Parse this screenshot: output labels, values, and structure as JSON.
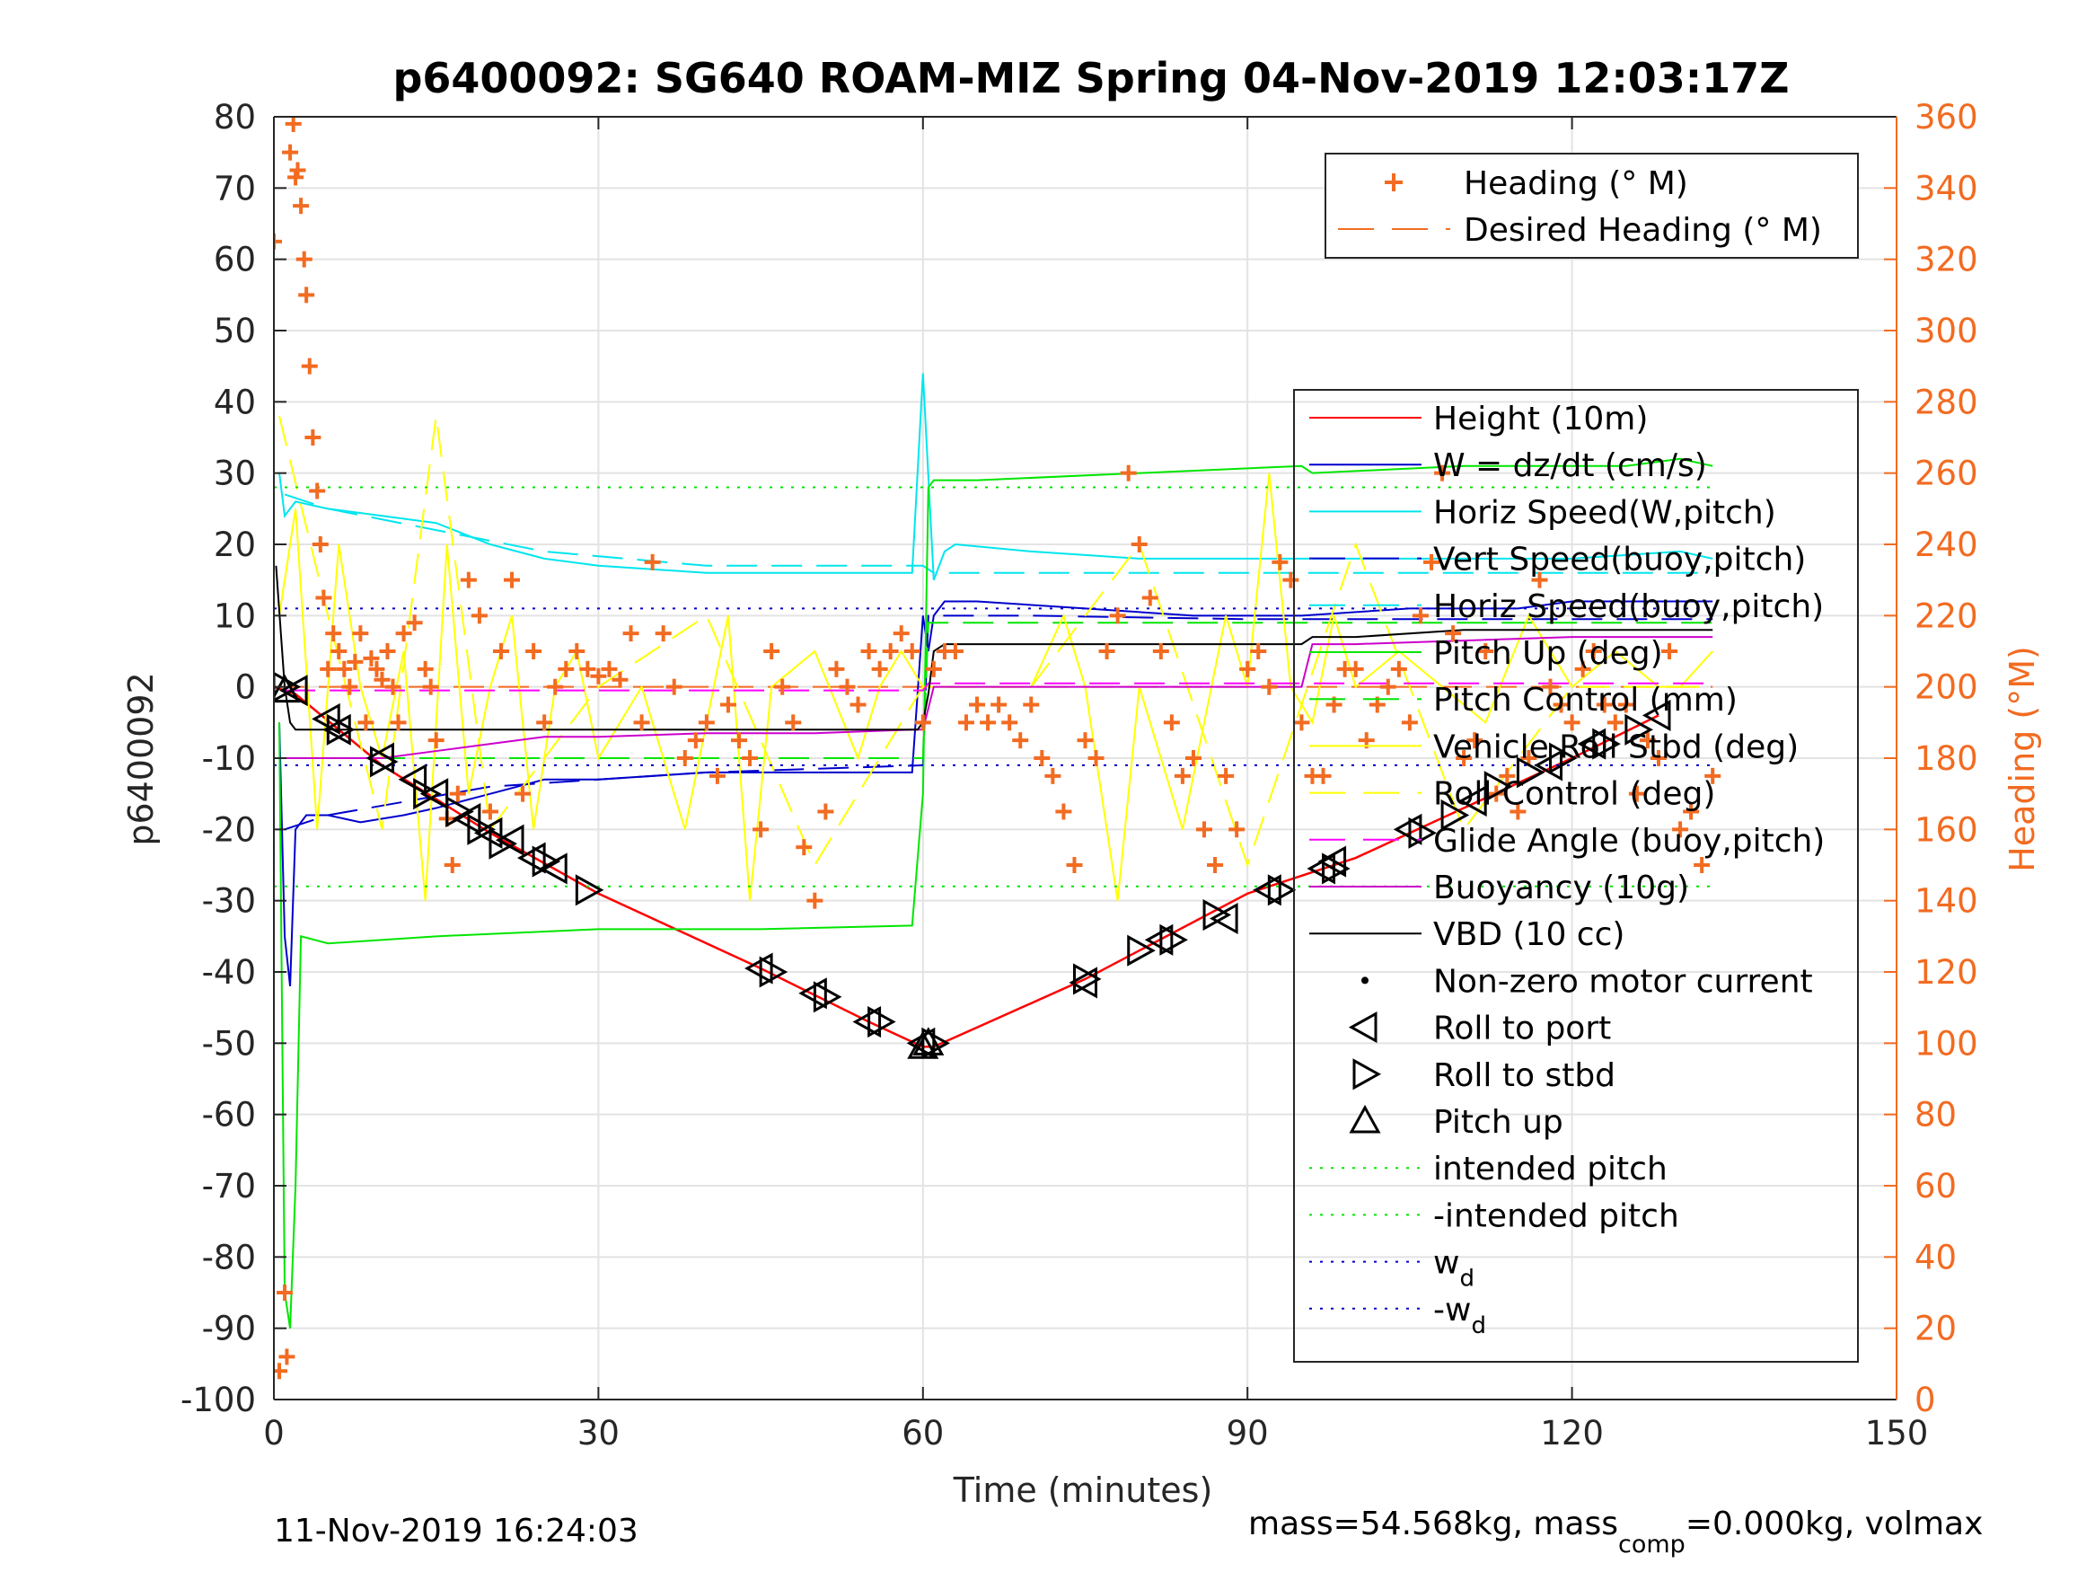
{
  "chart_data": {
    "type": "line",
    "title": "p6400092: SG640 ROAM-MIZ Spring 04-Nov-2019 12:03:17Z",
    "xlabel": "Time (minutes)",
    "ylabel": "p6400092",
    "ylabel_right": "Heading (°M)",
    "xlim": [
      0,
      150
    ],
    "ylim": [
      -100,
      80
    ],
    "ylim_right": [
      0,
      360
    ],
    "x_ticks": [
      "0",
      "30",
      "60",
      "90",
      "120",
      "150"
    ],
    "y_ticks": [
      "-100",
      "-90",
      "-80",
      "-70",
      "-60",
      "-50",
      "-40",
      "-30",
      "-20",
      "-10",
      "0",
      "10",
      "20",
      "30",
      "40",
      "50",
      "60",
      "70",
      "80"
    ],
    "y_ticks_right": [
      "0",
      "20",
      "40",
      "60",
      "80",
      "100",
      "120",
      "140",
      "160",
      "180",
      "200",
      "220",
      "240",
      "260",
      "280",
      "300",
      "320",
      "340",
      "360"
    ],
    "grid": true,
    "footer_left": "11-Nov-2019 16:24:03",
    "footer_right": {
      "part1": "mass=54.568kg, mass",
      "sub": "comp",
      "part2": "=0.000kg, volmax"
    },
    "legend_heading": {
      "placement": "top-right",
      "entries": [
        {
          "label": "Heading (° M)",
          "color": "#f26b21",
          "style": "plus"
        },
        {
          "label": "Desired Heading (° M)",
          "color": "#f26b21",
          "style": "dashed"
        }
      ]
    },
    "legend_main": {
      "placement": "right",
      "entries": [
        {
          "label": "Height (10m)",
          "color": "#ff0000",
          "style": "solid"
        },
        {
          "label": "W = dz/dt (cm/s)",
          "color": "#0000cc",
          "style": "solid"
        },
        {
          "label": "Horiz Speed(W,pitch)",
          "color": "#00e5ee",
          "style": "solid"
        },
        {
          "label": "Vert Speed(buoy,pitch)",
          "color": "#0000cc",
          "style": "dashed"
        },
        {
          "label": "Horiz Speed(buoy,pitch)",
          "color": "#00e5ee",
          "style": "dashed"
        },
        {
          "label": "Pitch Up (deg)",
          "color": "#00e600",
          "style": "solid"
        },
        {
          "label": "Pitch Control (mm)",
          "color": "#00e600",
          "style": "dashed"
        },
        {
          "label": "Vehicle Roll Stbd (deg)",
          "color": "#ffff00",
          "style": "solid"
        },
        {
          "label": "Roll Control (deg)",
          "color": "#ffff00",
          "style": "dashed"
        },
        {
          "label": "Glide Angle (buoy,pitch)",
          "color": "#ff00ff",
          "style": "dashed"
        },
        {
          "label": "Buoyancy (10g)",
          "color": "#cc00cc",
          "style": "solid"
        },
        {
          "label": "VBD (10 cc)",
          "color": "#000000",
          "style": "solid"
        },
        {
          "label": "Non-zero motor current",
          "color": "#000000",
          "style": "dot"
        },
        {
          "label": "Roll to port",
          "color": "#000000",
          "style": "tri-left"
        },
        {
          "label": "Roll to stbd",
          "color": "#000000",
          "style": "tri-right"
        },
        {
          "label": "Pitch up",
          "color": "#000000",
          "style": "tri-up"
        },
        {
          "label": "intended pitch",
          "color": "#00e600",
          "style": "dotted"
        },
        {
          "label": "-intended pitch",
          "color": "#00e600",
          "style": "dotted"
        },
        {
          "label": "w",
          "sub": "d",
          "color": "#0000cc",
          "style": "dotted"
        },
        {
          "label": "-w",
          "sub": "d",
          "color": "#0000cc",
          "style": "dotted"
        }
      ]
    },
    "series": [
      {
        "name": "Height (10m)",
        "color": "#ff0000",
        "style": "solid",
        "x": [
          0,
          2,
          10,
          20,
          30,
          45,
          55,
          60,
          61,
          75,
          90,
          100,
          110,
          120,
          128
        ],
        "y": [
          0,
          -1,
          -11,
          -20.5,
          -29,
          -39.5,
          -47,
          -50.5,
          -50.5,
          -41,
          -29,
          -24,
          -17,
          -10,
          -4
        ]
      },
      {
        "name": "W = dz/dt (cm/s)",
        "color": "#0000cc",
        "style": "solid",
        "x": [
          0.5,
          1,
          1.5,
          2,
          3,
          5,
          8,
          12,
          15,
          20,
          25,
          30,
          40,
          50,
          59,
          60,
          60.5,
          61,
          62,
          65,
          75,
          85,
          95,
          105,
          110,
          115,
          120,
          125,
          130,
          133
        ],
        "y": [
          -5,
          -35,
          -42,
          -20,
          -18,
          -18,
          -19,
          -18,
          -17,
          -15,
          -13,
          -13,
          -12,
          -12,
          -12,
          10,
          5,
          10,
          12,
          12,
          11,
          10,
          10,
          11,
          11,
          11,
          12,
          12,
          12,
          12
        ]
      },
      {
        "name": "Horiz Speed(W,pitch)",
        "color": "#00e5ee",
        "style": "solid",
        "x": [
          0.5,
          1,
          2,
          5,
          10,
          15,
          20,
          25,
          30,
          40,
          50,
          59,
          60,
          61,
          62,
          63,
          70,
          80,
          90,
          100,
          110,
          120,
          130,
          133
        ],
        "y": [
          30,
          24,
          26,
          25,
          24,
          23,
          20,
          18,
          17,
          16,
          16,
          16,
          44,
          15,
          19,
          20,
          19,
          18,
          18,
          18,
          18,
          18,
          19,
          18
        ]
      },
      {
        "name": "Vert Speed(buoy,pitch)",
        "color": "#0000cc",
        "style": "dashed",
        "x": [
          1,
          5,
          20,
          40,
          60,
          60.5,
          70,
          90,
          110,
          133
        ],
        "y": [
          -20,
          -18,
          -14,
          -12,
          -11,
          10,
          10,
          9.5,
          9.5,
          9.5
        ]
      },
      {
        "name": "Horiz Speed(buoy,pitch)",
        "color": "#00e5ee",
        "style": "dashed",
        "x": [
          1,
          5,
          15,
          25,
          40,
          60,
          61,
          70,
          90,
          110,
          133
        ],
        "y": [
          27,
          25,
          22,
          19,
          17,
          17,
          16,
          16,
          16,
          16,
          16
        ]
      },
      {
        "name": "Pitch Up (deg)",
        "color": "#00e600",
        "style": "solid",
        "x": [
          0.5,
          1,
          1.5,
          2,
          2.5,
          5,
          15,
          30,
          45,
          59,
          60,
          60.5,
          61,
          65,
          80,
          95,
          96,
          110,
          125,
          130,
          133
        ],
        "y": [
          -5,
          -85,
          -90,
          -70,
          -35,
          -36,
          -35,
          -34,
          -34,
          -33.5,
          -15,
          28,
          29,
          29,
          30,
          31,
          30,
          31,
          31,
          32,
          31
        ]
      },
      {
        "name": "Pitch Control (mm)",
        "color": "#00e600",
        "style": "dashed",
        "x": [
          1,
          60,
          60.5,
          133
        ],
        "y": [
          -10,
          -10,
          9,
          9
        ]
      },
      {
        "name": "Vehicle Roll Stbd (deg)",
        "color": "#ffff00",
        "style": "solid",
        "x": [
          0.5,
          2,
          4,
          6,
          8,
          10,
          12,
          14,
          16,
          18,
          20,
          22,
          24,
          26,
          28,
          30,
          34,
          38,
          42,
          44,
          46,
          50,
          54,
          56,
          58,
          60,
          61,
          65,
          70,
          73,
          75,
          78,
          80,
          84,
          88,
          90,
          92,
          94,
          96,
          98,
          100,
          104,
          108,
          112,
          116,
          120,
          124,
          128,
          130,
          133
        ],
        "y": [
          10,
          25,
          -20,
          20,
          0,
          -10,
          5,
          -30,
          20,
          -15,
          0,
          10,
          -20,
          0,
          5,
          -10,
          0,
          -20,
          10,
          -30,
          0,
          5,
          -10,
          0,
          5,
          0,
          0,
          0,
          0,
          10,
          0,
          -30,
          0,
          -20,
          10,
          0,
          30,
          0,
          -5,
          10,
          0,
          5,
          0,
          -5,
          10,
          0,
          5,
          0,
          0,
          5
        ]
      },
      {
        "name": "Roll Control (deg)",
        "color": "#ffff00",
        "style": "dashed",
        "x": [
          0.5,
          5,
          10,
          15,
          20,
          30,
          40,
          50,
          60,
          70,
          80,
          90,
          100,
          110,
          120,
          133
        ],
        "y": [
          38,
          10,
          -20,
          38,
          -20,
          0,
          10,
          -25,
          0,
          0,
          20,
          -25,
          20,
          -20,
          0,
          0
        ]
      },
      {
        "name": "Glide Angle (buoy,pitch)",
        "color": "#ff00ff",
        "style": "dashed",
        "x": [
          1,
          60,
          60.5,
          133
        ],
        "y": [
          -0.5,
          -0.5,
          0.5,
          0.5
        ]
      },
      {
        "name": "Buoyancy (10g)",
        "color": "#cc00cc",
        "style": "solid",
        "x": [
          0.5,
          5,
          10,
          15,
          20,
          25,
          30,
          40,
          50,
          59,
          60,
          61,
          70,
          80,
          90,
          95,
          96,
          100,
          110,
          120,
          130,
          133
        ],
        "y": [
          -10,
          -10,
          -10,
          -9,
          -8,
          -7,
          -7,
          -6.5,
          -6.5,
          -6,
          -6,
          0,
          0,
          0,
          0,
          0,
          6,
          6,
          6.5,
          7,
          7,
          7
        ]
      },
      {
        "name": "VBD (10 cc)",
        "color": "#000000",
        "style": "solid",
        "x": [
          0.2,
          1,
          1.5,
          2,
          30,
          59.5,
          60,
          60.5,
          61,
          62,
          95,
          96,
          100,
          110,
          120,
          133
        ],
        "y": [
          17,
          0,
          -5,
          -6,
          -6,
          -6,
          -5,
          -1,
          5,
          6,
          6,
          7,
          7,
          8,
          8,
          8
        ]
      },
      {
        "name": "intended pitch",
        "color": "#00e600",
        "style": "dotted",
        "x": [
          0,
          133
        ],
        "y": [
          28,
          28
        ]
      },
      {
        "name": "-intended pitch",
        "color": "#00e600",
        "style": "dotted",
        "x": [
          0,
          133
        ],
        "y": [
          -28,
          -28
        ]
      },
      {
        "name": "w_d",
        "color": "#0000cc",
        "style": "dotted",
        "x": [
          0,
          133
        ],
        "y": [
          11,
          11
        ]
      },
      {
        "name": "-w_d",
        "color": "#0000cc",
        "style": "dotted",
        "x": [
          0,
          133
        ],
        "y": [
          -11,
          -11
        ]
      }
    ],
    "roll_to_port": {
      "x": [
        2,
        5,
        6,
        10,
        13,
        15,
        18,
        20,
        22,
        24,
        26,
        45,
        50,
        55,
        60,
        75,
        82,
        88,
        92,
        97,
        98,
        105,
        111,
        118,
        122,
        128
      ],
      "y": [
        -0.5,
        -4.5,
        -6,
        -10,
        -13,
        -15,
        -18.5,
        -20.5,
        -21.5,
        -24,
        -25.5,
        -39.5,
        -43,
        -47,
        -50,
        -41.5,
        -35.5,
        -32.5,
        -28.5,
        -25.5,
        -24.5,
        -20,
        -16,
        -11,
        -8,
        -4
      ]
    },
    "roll_to_stbd": {
      "x": [
        1,
        6,
        10,
        14,
        17,
        19,
        21,
        25,
        29,
        46,
        51,
        56,
        61,
        75,
        80,
        83,
        87,
        93,
        98,
        106,
        109,
        113,
        116,
        119,
        123,
        126
      ],
      "y": [
        0,
        -6,
        -10.5,
        -15,
        -17.5,
        -20,
        -22,
        -24.5,
        -28.5,
        -40,
        -43.5,
        -47,
        -50,
        -41,
        -37,
        -35.5,
        -32,
        -28.5,
        -25.5,
        -20.5,
        -18,
        -14,
        -12,
        -10,
        -8,
        -6
      ]
    },
    "pitch_up": {
      "x": [
        1,
        60,
        60.5
      ],
      "y": [
        -0.5,
        -50.5,
        -50
      ]
    },
    "heading_points": {
      "x": [
        0,
        0.5,
        1,
        1.2,
        1.5,
        1.8,
        2,
        2.2,
        2.5,
        2.8,
        3,
        3.3,
        3.6,
        4,
        4.3,
        4.6,
        5,
        5.5,
        6,
        6.5,
        7,
        7.5,
        8,
        8.5,
        9,
        9.5,
        10,
        10.5,
        11,
        11.5,
        12,
        13,
        14,
        14.5,
        15,
        16,
        16.5,
        17,
        18,
        19,
        20,
        21,
        22,
        23,
        24,
        25,
        26,
        27,
        28,
        29,
        30,
        31,
        32,
        33,
        34,
        35,
        36,
        37,
        38,
        39,
        40,
        41,
        42,
        43,
        44,
        45,
        46,
        47,
        48,
        49,
        50,
        51,
        52,
        53,
        54,
        55,
        56,
        57,
        58,
        59,
        60,
        61,
        62,
        63,
        64,
        65,
        66,
        67,
        68,
        69,
        70,
        71,
        72,
        73,
        74,
        75,
        76,
        77,
        78,
        79,
        80,
        81,
        82,
        83,
        84,
        85,
        86,
        87,
        88,
        89,
        90,
        91,
        92,
        93,
        94,
        95,
        96,
        97,
        98,
        99,
        100,
        101,
        102,
        103,
        104,
        105,
        106,
        107,
        108,
        109,
        110,
        111,
        112,
        113,
        114,
        115,
        116,
        117,
        118,
        119,
        120,
        121,
        122,
        123,
        124,
        125,
        126,
        127,
        128,
        129,
        130,
        131,
        132,
        133
      ],
      "y": [
        325,
        8,
        30,
        12,
        350,
        358,
        343,
        345,
        335,
        320,
        310,
        290,
        270,
        255,
        240,
        225,
        205,
        215,
        210,
        205,
        200,
        207,
        215,
        190,
        208,
        205,
        202,
        210,
        200,
        190,
        215,
        218,
        205,
        200,
        185,
        163,
        150,
        170,
        230,
        220,
        165,
        210,
        230,
        170,
        210,
        190,
        200,
        205,
        210,
        205,
        203,
        205,
        202,
        215,
        190,
        235,
        215,
        200,
        180,
        185,
        190,
        175,
        195,
        185,
        180,
        160,
        210,
        200,
        190,
        155,
        140,
        165,
        205,
        200,
        195,
        210,
        205,
        210,
        215,
        210,
        190,
        205,
        210,
        210,
        190,
        195,
        190,
        195,
        190,
        185,
        195,
        180,
        175,
        165,
        150,
        185,
        180,
        210,
        220,
        260,
        240,
        225,
        210,
        190,
        175,
        180,
        160,
        150,
        175,
        160,
        205,
        210,
        200,
        235,
        230,
        190,
        175,
        175,
        195,
        205,
        205,
        185,
        195,
        200,
        205,
        190,
        220,
        235,
        260,
        215,
        180,
        185,
        210,
        170,
        175,
        165,
        180,
        230,
        200,
        195,
        190,
        205,
        210,
        195,
        190,
        195,
        170,
        185,
        180,
        210,
        160,
        165,
        150,
        175
      ]
    },
    "desired_heading": {
      "x": [
        0,
        133
      ],
      "y": [
        200,
        200
      ]
    }
  }
}
